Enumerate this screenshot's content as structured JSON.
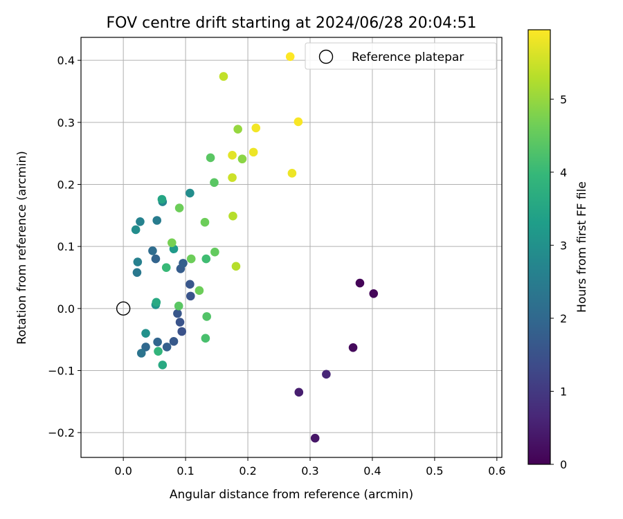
{
  "chart_data": {
    "type": "scatter",
    "title": "FOV centre drift starting at 2024/06/28 20:04:51",
    "xlabel": "Angular distance from reference (arcmin)",
    "ylabel": "Rotation from reference (arcmin)",
    "xlim": [
      -0.068,
      0.608
    ],
    "ylim": [
      -0.24,
      0.437
    ],
    "xticks": [
      0.0,
      0.1,
      0.2,
      0.3,
      0.4,
      0.5,
      0.6
    ],
    "xtick_labels": [
      "0.0",
      "0.1",
      "0.2",
      "0.3",
      "0.4",
      "0.5",
      "0.6"
    ],
    "yticks": [
      -0.2,
      -0.1,
      0.0,
      0.1,
      0.2,
      0.3,
      0.4
    ],
    "ytick_labels": [
      "−0.2",
      "−0.1",
      "0.0",
      "0.1",
      "0.2",
      "0.3",
      "0.4"
    ],
    "grid": true,
    "legend": {
      "position": "top-right",
      "entries": [
        "Reference platepar"
      ]
    },
    "reference_point": {
      "x": 0.0,
      "y": 0.0
    },
    "colorbar": {
      "label": "Hours from first FF file",
      "colormap": "viridis",
      "range": [
        0,
        5.95
      ],
      "ticks": [
        0,
        1,
        2,
        3,
        4,
        5
      ],
      "tick_labels": [
        "0",
        "1",
        "2",
        "3",
        "4",
        "5"
      ]
    },
    "points": [
      {
        "x": 0.38,
        "y": 0.041,
        "hours": 0.05
      },
      {
        "x": 0.402,
        "y": 0.024,
        "hours": 0.1
      },
      {
        "x": 0.369,
        "y": -0.063,
        "hours": 0.15
      },
      {
        "x": 0.308,
        "y": -0.209,
        "hours": 0.35
      },
      {
        "x": 0.282,
        "y": -0.135,
        "hours": 0.5
      },
      {
        "x": 0.326,
        "y": -0.106,
        "hours": 0.65
      },
      {
        "x": 0.094,
        "y": -0.037,
        "hours": 1.5
      },
      {
        "x": 0.091,
        "y": -0.022,
        "hours": 1.55
      },
      {
        "x": 0.087,
        "y": -0.008,
        "hours": 1.6
      },
      {
        "x": 0.081,
        "y": -0.053,
        "hours": 1.65
      },
      {
        "x": 0.07,
        "y": -0.062,
        "hours": 1.8
      },
      {
        "x": 0.055,
        "y": -0.054,
        "hours": 1.95
      },
      {
        "x": 0.036,
        "y": -0.062,
        "hours": 2.0
      },
      {
        "x": 0.029,
        "y": -0.072,
        "hours": 2.3
      },
      {
        "x": 0.108,
        "y": 0.02,
        "hours": 1.55
      },
      {
        "x": 0.107,
        "y": 0.039,
        "hours": 1.6
      },
      {
        "x": 0.092,
        "y": 0.064,
        "hours": 1.75
      },
      {
        "x": 0.096,
        "y": 0.073,
        "hours": 1.8
      },
      {
        "x": 0.052,
        "y": 0.08,
        "hours": 1.9
      },
      {
        "x": 0.047,
        "y": 0.093,
        "hours": 2.1
      },
      {
        "x": 0.022,
        "y": 0.058,
        "hours": 2.4
      },
      {
        "x": 0.023,
        "y": 0.075,
        "hours": 2.6
      },
      {
        "x": 0.054,
        "y": 0.142,
        "hours": 2.5
      },
      {
        "x": 0.027,
        "y": 0.14,
        "hours": 2.65
      },
      {
        "x": 0.02,
        "y": 0.127,
        "hours": 2.9
      },
      {
        "x": 0.063,
        "y": 0.172,
        "hours": 2.7
      },
      {
        "x": 0.107,
        "y": 0.186,
        "hours": 2.9
      },
      {
        "x": 0.081,
        "y": 0.096,
        "hours": 3.2
      },
      {
        "x": 0.036,
        "y": -0.04,
        "hours": 3.0
      },
      {
        "x": 0.052,
        "y": 0.006,
        "hours": 3.1
      },
      {
        "x": 0.053,
        "y": 0.01,
        "hours": 3.6
      },
      {
        "x": 0.062,
        "y": 0.176,
        "hours": 3.5
      },
      {
        "x": 0.063,
        "y": -0.091,
        "hours": 3.6
      },
      {
        "x": 0.056,
        "y": -0.069,
        "hours": 3.9
      },
      {
        "x": 0.069,
        "y": 0.066,
        "hours": 4.0
      },
      {
        "x": 0.089,
        "y": 0.004,
        "hours": 4.4
      },
      {
        "x": 0.132,
        "y": -0.048,
        "hours": 4.2
      },
      {
        "x": 0.134,
        "y": -0.013,
        "hours": 4.3
      },
      {
        "x": 0.122,
        "y": 0.029,
        "hours": 4.6
      },
      {
        "x": 0.133,
        "y": 0.08,
        "hours": 4.1
      },
      {
        "x": 0.147,
        "y": 0.091,
        "hours": 4.5
      },
      {
        "x": 0.109,
        "y": 0.08,
        "hours": 4.6
      },
      {
        "x": 0.078,
        "y": 0.106,
        "hours": 4.7
      },
      {
        "x": 0.131,
        "y": 0.139,
        "hours": 4.6
      },
      {
        "x": 0.09,
        "y": 0.162,
        "hours": 4.6
      },
      {
        "x": 0.146,
        "y": 0.203,
        "hours": 4.4
      },
      {
        "x": 0.14,
        "y": 0.243,
        "hours": 4.4
      },
      {
        "x": 0.191,
        "y": 0.241,
        "hours": 4.9
      },
      {
        "x": 0.184,
        "y": 0.289,
        "hours": 5.0
      },
      {
        "x": 0.176,
        "y": 0.149,
        "hours": 5.3
      },
      {
        "x": 0.181,
        "y": 0.068,
        "hours": 5.3
      },
      {
        "x": 0.161,
        "y": 0.374,
        "hours": 5.4
      },
      {
        "x": 0.175,
        "y": 0.211,
        "hours": 5.5
      },
      {
        "x": 0.175,
        "y": 0.247,
        "hours": 5.7
      },
      {
        "x": 0.209,
        "y": 0.252,
        "hours": 5.8
      },
      {
        "x": 0.213,
        "y": 0.291,
        "hours": 5.85
      },
      {
        "x": 0.271,
        "y": 0.218,
        "hours": 5.8
      },
      {
        "x": 0.281,
        "y": 0.301,
        "hours": 5.9
      },
      {
        "x": 0.268,
        "y": 0.406,
        "hours": 5.95
      }
    ]
  }
}
